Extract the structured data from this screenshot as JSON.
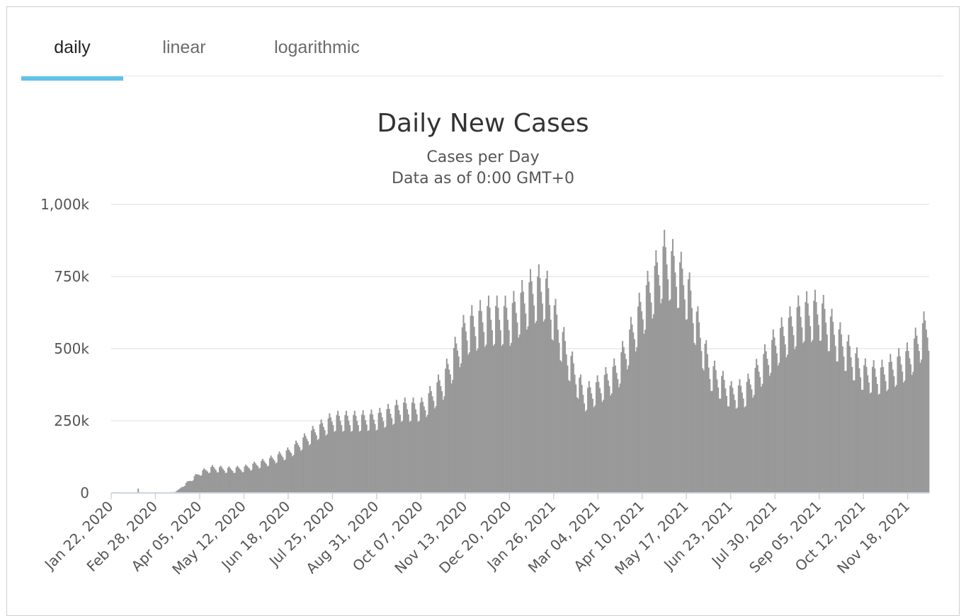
{
  "tabs": [
    {
      "label": "daily",
      "active": true
    },
    {
      "label": "linear",
      "active": false
    },
    {
      "label": "logarithmic",
      "active": false
    }
  ],
  "accent_color": "#5fc3ea",
  "bar_color": "#999999",
  "chart_data": {
    "type": "bar",
    "title": "Daily New Cases",
    "subtitle": "Cases per Day",
    "subtitle2": "Data as of 0:00 GMT+0",
    "xlabel": "",
    "ylabel": "",
    "ylim": [
      0,
      1000000
    ],
    "y_ticks": [
      {
        "value": 0,
        "label": "0"
      },
      {
        "value": 250000,
        "label": "250k"
      },
      {
        "value": 500000,
        "label": "500k"
      },
      {
        "value": 750000,
        "label": "750k"
      },
      {
        "value": 1000000,
        "label": "1,000k"
      }
    ],
    "x_range": [
      "Jan 22, 2020",
      "Dec 05, 2021"
    ],
    "x_tick_labels": [
      "Jan 22, 2020",
      "Feb 28, 2020",
      "Apr 05, 2020",
      "May 12, 2020",
      "Jun 18, 2020",
      "Jul 25, 2020",
      "Aug 31, 2020",
      "Oct 07, 2020",
      "Nov 13, 2020",
      "Dec 20, 2020",
      "Jan 26, 2021",
      "Mar 04, 2021",
      "Apr 10, 2021",
      "May 17, 2021",
      "Jun 23, 2021",
      "Jul 30, 2021",
      "Sep 05, 2021",
      "Oct 12, 2021",
      "Nov 18, 2021"
    ],
    "grid": true,
    "legend": "none",
    "weekly_trend": {
      "dates": [
        "Jan 22, 2020",
        "Feb 15, 2020",
        "Mar 05, 2020",
        "Mar 15, 2020",
        "Apr 05, 2020",
        "Apr 15, 2020",
        "May 01, 2020",
        "May 12, 2020",
        "Jun 01, 2020",
        "Jun 18, 2020",
        "Jul 10, 2020",
        "Jul 25, 2020",
        "Aug 15, 2020",
        "Aug 31, 2020",
        "Sep 20, 2020",
        "Oct 07, 2020",
        "Oct 25, 2020",
        "Nov 13, 2020",
        "Dec 01, 2020",
        "Dec 20, 2020",
        "Jan 08, 2021",
        "Jan 18, 2021",
        "Feb 05, 2021",
        "Feb 20, 2021",
        "Mar 04, 2021",
        "Mar 20, 2021",
        "Apr 10, 2021",
        "Apr 28, 2021",
        "May 08, 2021",
        "May 17, 2021",
        "Jun 05, 2021",
        "Jun 23, 2021",
        "Jul 05, 2021",
        "Jul 30, 2021",
        "Aug 20, 2021",
        "Sep 05, 2021",
        "Sep 20, 2021",
        "Oct 12, 2021",
        "Oct 25, 2021",
        "Nov 18, 2021",
        "Dec 05, 2021"
      ],
      "values": [
        600,
        1500,
        2000,
        3000,
        70000,
        85000,
        80000,
        85000,
        110000,
        140000,
        210000,
        250000,
        250000,
        255000,
        290000,
        290000,
        380000,
        560000,
        600000,
        600000,
        690000,
        700000,
        480000,
        330000,
        360000,
        420000,
        640000,
        800000,
        760000,
        700000,
        420000,
        340000,
        350000,
        510000,
        610000,
        620000,
        530000,
        410000,
        400000,
        460000,
        580000
      ]
    }
  }
}
